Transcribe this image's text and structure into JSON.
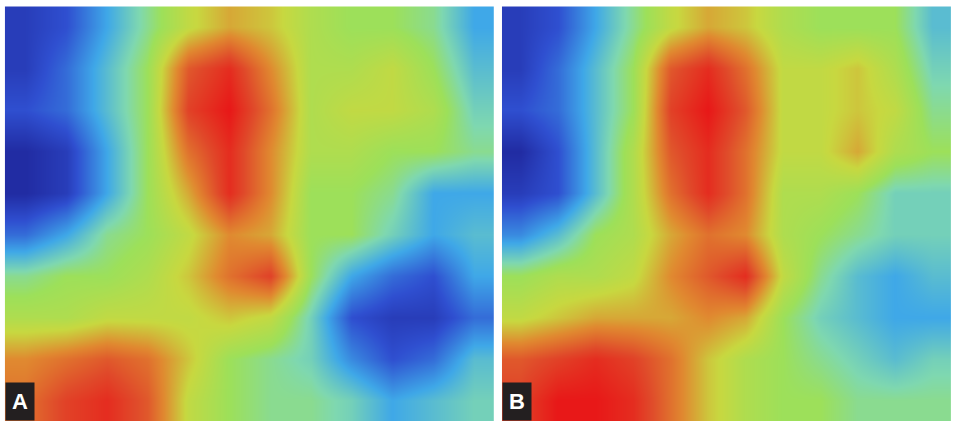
{
  "chart_data": [
    {
      "type": "heatmap",
      "label": "A",
      "color": "jet",
      "zlim": [
        0,
        1
      ],
      "tick_labels": false,
      "cells": [
        [
          0.1,
          0.15,
          0.3,
          0.45,
          0.6,
          0.7,
          0.65,
          0.55,
          0.5,
          0.5,
          0.45,
          0.3
        ],
        [
          0.1,
          0.2,
          0.35,
          0.5,
          0.85,
          0.95,
          0.75,
          0.55,
          0.55,
          0.6,
          0.5,
          0.35
        ],
        [
          0.15,
          0.2,
          0.35,
          0.5,
          0.9,
          1.0,
          0.8,
          0.55,
          0.6,
          0.6,
          0.55,
          0.4
        ],
        [
          0.05,
          0.1,
          0.3,
          0.5,
          0.8,
          0.95,
          0.75,
          0.55,
          0.55,
          0.5,
          0.5,
          0.45
        ],
        [
          0.05,
          0.1,
          0.3,
          0.5,
          0.7,
          0.95,
          0.75,
          0.5,
          0.5,
          0.45,
          0.3,
          0.3
        ],
        [
          0.2,
          0.3,
          0.45,
          0.5,
          0.6,
          0.75,
          0.7,
          0.5,
          0.5,
          0.4,
          0.3,
          0.35
        ],
        [
          0.45,
          0.5,
          0.5,
          0.55,
          0.65,
          0.8,
          0.9,
          0.5,
          0.3,
          0.2,
          0.15,
          0.3
        ],
        [
          0.55,
          0.55,
          0.6,
          0.6,
          0.6,
          0.65,
          0.6,
          0.4,
          0.15,
          0.1,
          0.1,
          0.2
        ],
        [
          0.75,
          0.8,
          0.85,
          0.8,
          0.65,
          0.5,
          0.45,
          0.4,
          0.25,
          0.15,
          0.2,
          0.35
        ],
        [
          0.8,
          0.9,
          0.95,
          0.85,
          0.6,
          0.5,
          0.45,
          0.45,
          0.4,
          0.3,
          0.35,
          0.4
        ]
      ]
    },
    {
      "type": "heatmap",
      "label": "B",
      "color": "jet",
      "zlim": [
        0,
        1
      ],
      "tick_labels": false,
      "cells": [
        [
          0.1,
          0.15,
          0.3,
          0.45,
          0.6,
          0.7,
          0.65,
          0.55,
          0.5,
          0.5,
          0.5,
          0.35
        ],
        [
          0.1,
          0.2,
          0.35,
          0.5,
          0.85,
          0.95,
          0.8,
          0.6,
          0.6,
          0.65,
          0.55,
          0.4
        ],
        [
          0.15,
          0.2,
          0.35,
          0.5,
          0.9,
          1.0,
          0.85,
          0.6,
          0.6,
          0.65,
          0.6,
          0.45
        ],
        [
          0.05,
          0.15,
          0.35,
          0.55,
          0.85,
          0.95,
          0.8,
          0.6,
          0.6,
          0.7,
          0.55,
          0.5
        ],
        [
          0.1,
          0.15,
          0.35,
          0.55,
          0.8,
          0.95,
          0.8,
          0.55,
          0.55,
          0.5,
          0.4,
          0.4
        ],
        [
          0.25,
          0.35,
          0.5,
          0.55,
          0.7,
          0.8,
          0.75,
          0.55,
          0.5,
          0.45,
          0.4,
          0.4
        ],
        [
          0.5,
          0.55,
          0.55,
          0.6,
          0.75,
          0.85,
          0.95,
          0.6,
          0.45,
          0.35,
          0.3,
          0.35
        ],
        [
          0.6,
          0.65,
          0.7,
          0.7,
          0.7,
          0.75,
          0.7,
          0.5,
          0.4,
          0.35,
          0.3,
          0.3
        ],
        [
          0.85,
          0.9,
          0.95,
          0.9,
          0.8,
          0.65,
          0.55,
          0.5,
          0.45,
          0.4,
          0.35,
          0.4
        ],
        [
          0.9,
          1.0,
          1.0,
          0.95,
          0.8,
          0.65,
          0.55,
          0.5,
          0.5,
          0.45,
          0.45,
          0.45
        ]
      ]
    }
  ]
}
